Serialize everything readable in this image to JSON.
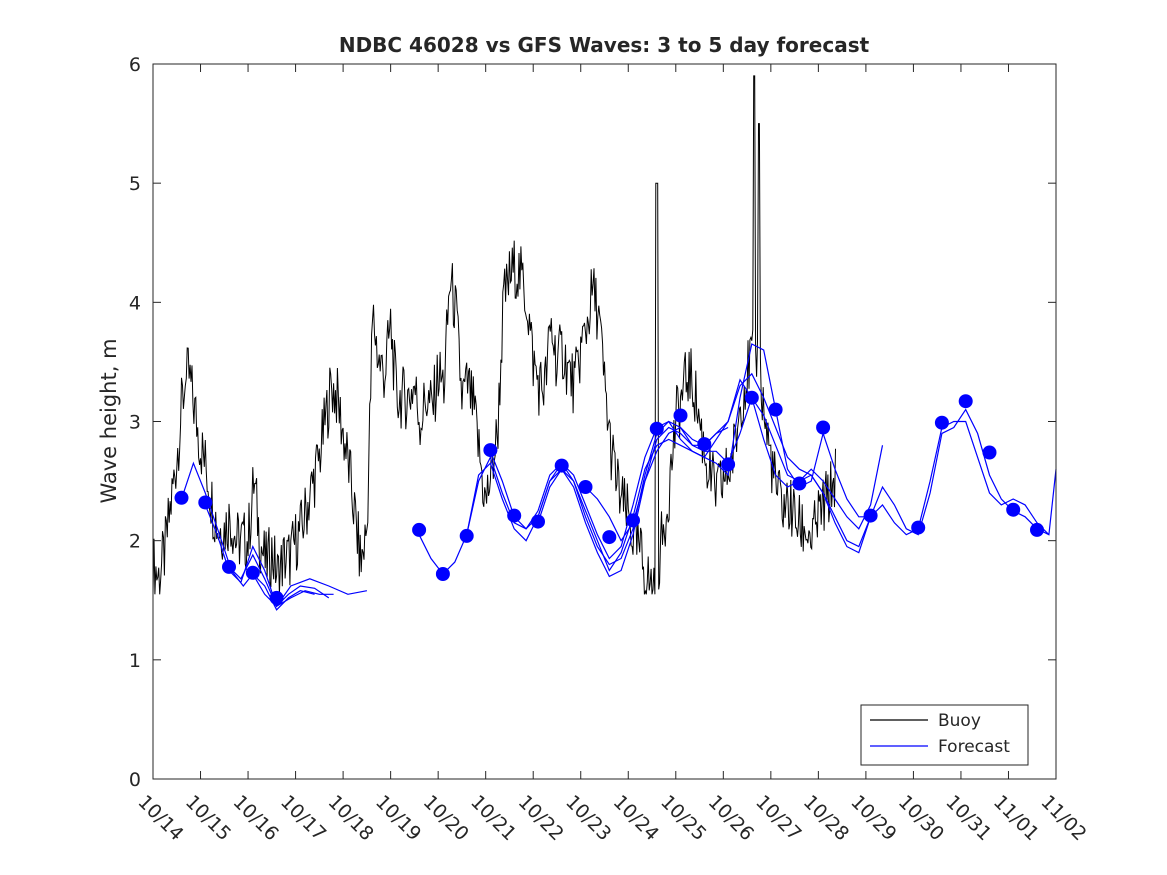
{
  "chart_data": {
    "type": "line",
    "title": "NDBC 46028 vs GFS Waves: 3 to 5 day forecast",
    "xlabel": "",
    "ylabel": "Wave height, m",
    "xlim": [
      0,
      19
    ],
    "ylim": [
      0,
      6
    ],
    "x_ticks": [
      {
        "label": "10/14",
        "value": 0
      },
      {
        "label": "10/15",
        "value": 1
      },
      {
        "label": "10/16",
        "value": 2
      },
      {
        "label": "10/17",
        "value": 3
      },
      {
        "label": "10/18",
        "value": 4
      },
      {
        "label": "10/19",
        "value": 5
      },
      {
        "label": "10/20",
        "value": 6
      },
      {
        "label": "10/21",
        "value": 7
      },
      {
        "label": "10/22",
        "value": 8
      },
      {
        "label": "10/23",
        "value": 9
      },
      {
        "label": "10/24",
        "value": 10
      },
      {
        "label": "10/25",
        "value": 11
      },
      {
        "label": "10/26",
        "value": 12
      },
      {
        "label": "10/27",
        "value": 13
      },
      {
        "label": "10/28",
        "value": 14
      },
      {
        "label": "10/29",
        "value": 15
      },
      {
        "label": "10/30",
        "value": 16
      },
      {
        "label": "10/31",
        "value": 17
      },
      {
        "label": "11/01",
        "value": 18
      },
      {
        "label": "11/02",
        "value": 19
      }
    ],
    "y_ticks": [
      0,
      1,
      2,
      3,
      4,
      5,
      6
    ],
    "legend": {
      "position": "bottom-right",
      "entries": [
        "Buoy",
        "Forecast"
      ]
    },
    "colors": {
      "buoy": "#000000",
      "forecast": "#0000ff",
      "axis": "#262626"
    },
    "buoy": {
      "name": "Buoy",
      "x_start": 0,
      "x_step": 0.125,
      "values": [
        1.8,
        1.7,
        1.9,
        2.3,
        2.7,
        3.2,
        3.4,
        3.1,
        2.8,
        2.6,
        2.3,
        2.1,
        2.1,
        2.2,
        2.0,
        2.0,
        2.0,
        2.5,
        2.0,
        1.8,
        1.9,
        1.7,
        1.85,
        1.85,
        2.0,
        2.1,
        2.3,
        2.5,
        2.7,
        3.0,
        3.3,
        3.2,
        2.9,
        2.6,
        2.2,
        1.8,
        2.1,
        3.9,
        3.5,
        3.4,
        3.8,
        3.2,
        3.2,
        3.2,
        3.3,
        3.0,
        3.2,
        3.1,
        3.4,
        3.3,
        4.2,
        3.9,
        3.2,
        3.3,
        3.1,
        2.7,
        2.3,
        2.6,
        2.9,
        4.0,
        4.2,
        4.3,
        4.2,
        4.0,
        3.5,
        3.3,
        3.3,
        3.8,
        3.5,
        3.6,
        3.4,
        3.3,
        3.6,
        3.8,
        4.1,
        3.9,
        3.3,
        2.8,
        2.5,
        2.3,
        2.2,
        2.0,
        1.9,
        1.7,
        1.6,
        1.8,
        2.1,
        2.5,
        3.0,
        3.2,
        3.4,
        3.3,
        3.0,
        2.7,
        2.5,
        2.4,
        2.5,
        2.6,
        2.8,
        3.2,
        3.4,
        3.6,
        3.5,
        3.0,
        2.7,
        2.4,
        2.3,
        2.3,
        2.2,
        2.1,
        2.1,
        2.0,
        2.2,
        2.3,
        2.4,
        2.6
      ],
      "events": [
        {
          "x": 0.7,
          "value": 3.3,
          "note": "approx"
        },
        {
          "x": 10.6,
          "value": 5.0
        },
        {
          "x": 12.65,
          "value": 5.9
        },
        {
          "x": 12.75,
          "value": 5.5
        }
      ]
    },
    "forecast": {
      "name": "Forecast",
      "runs": [
        {
          "x": [
            0.6,
            0.85,
            1.1,
            1.4,
            1.65,
            1.9,
            2.1,
            2.35,
            2.6,
            2.9,
            3.2,
            3.5,
            3.8
          ],
          "values": [
            2.35,
            2.65,
            2.4,
            2.05,
            1.75,
            1.62,
            1.72,
            1.55,
            1.45,
            1.52,
            1.58,
            1.55,
            1.55
          ]
        },
        {
          "x": [
            1.1,
            1.35,
            1.6,
            1.85,
            2.1,
            2.35,
            2.6,
            2.9,
            3.3,
            3.7,
            4.1,
            4.5
          ],
          "values": [
            2.3,
            2.05,
            1.75,
            1.65,
            1.95,
            1.75,
            1.45,
            1.62,
            1.68,
            1.62,
            1.55,
            1.58
          ]
        },
        {
          "x": [
            1.6,
            1.85,
            2.1,
            2.35,
            2.6,
            2.85,
            3.1,
            3.4,
            3.7
          ],
          "values": [
            1.78,
            1.68,
            1.88,
            1.68,
            1.45,
            1.55,
            1.62,
            1.6,
            1.52
          ]
        },
        {
          "x": [
            2.1,
            2.35,
            2.6,
            2.85,
            3.1,
            3.4
          ],
          "values": [
            1.72,
            1.62,
            1.42,
            1.52,
            1.58,
            1.55
          ]
        },
        {
          "x": [
            5.6,
            5.85,
            6.1,
            6.35,
            6.6,
            6.85,
            7.1,
            7.35,
            7.6,
            7.85,
            8.1,
            8.35,
            8.6,
            8.85,
            9.1,
            9.35,
            9.6,
            9.85,
            10.1,
            10.35,
            10.6,
            10.85,
            11.1,
            11.35,
            11.6,
            11.85,
            12.1,
            12.35,
            12.6,
            12.85,
            13.1,
            13.35,
            13.6,
            13.85,
            14.1,
            14.35,
            14.6,
            14.85,
            15.1,
            15.35,
            15.6,
            15.85,
            16.1,
            16.35,
            16.6,
            16.85,
            17.1,
            17.35,
            17.6,
            17.85,
            18.1,
            18.35,
            18.6,
            18.85,
            19.0
          ],
          "values": [
            2.05,
            1.85,
            1.72,
            1.82,
            2.05,
            2.5,
            2.7,
            2.4,
            2.15,
            2.1,
            2.25,
            2.55,
            2.65,
            2.5,
            2.2,
            1.95,
            1.8,
            1.85,
            2.1,
            2.55,
            2.9,
            3.0,
            2.95,
            2.8,
            2.75,
            2.75,
            2.65,
            2.9,
            3.2,
            3.05,
            2.8,
            2.55,
            2.5,
            2.55,
            2.4,
            2.2,
            2.0,
            1.95,
            2.2,
            2.45,
            2.3,
            2.1,
            2.05,
            2.4,
            2.9,
            2.95,
            3.1,
            2.9,
            2.55,
            2.35,
            2.25,
            2.2,
            2.1,
            2.05,
            2.6
          ]
        },
        {
          "x": [
            6.6,
            6.85,
            7.1,
            7.35,
            7.6,
            7.85,
            8.1,
            8.35,
            8.6,
            8.85,
            9.1,
            9.35,
            9.6,
            9.85,
            10.1,
            10.35,
            10.6,
            10.85,
            11.1,
            11.35,
            11.6,
            11.85,
            12.1,
            12.35,
            12.6,
            12.85,
            13.1,
            13.35,
            13.6,
            13.85,
            14.1,
            14.35,
            14.6,
            14.85,
            15.1
          ],
          "values": [
            2.05,
            2.55,
            2.65,
            2.35,
            2.1,
            2.0,
            2.2,
            2.5,
            2.6,
            2.45,
            2.15,
            1.9,
            1.7,
            1.75,
            2.05,
            2.5,
            2.85,
            2.95,
            2.9,
            2.8,
            2.8,
            2.9,
            3.0,
            3.3,
            3.4,
            3.2,
            2.95,
            2.7,
            2.6,
            2.55,
            2.4,
            2.15,
            1.95,
            1.9,
            2.2
          ]
        },
        {
          "x": [
            7.1,
            7.35,
            7.6,
            7.85,
            8.1,
            8.35,
            8.6,
            8.85,
            9.1,
            9.35,
            9.6,
            9.85,
            10.1,
            10.35,
            10.6,
            10.85,
            11.1,
            11.35,
            11.6,
            11.85,
            12.1,
            12.35,
            12.6,
            12.85,
            13.1,
            13.35,
            13.6,
            13.85,
            14.1,
            14.35,
            14.6,
            14.85,
            15.1,
            15.35,
            15.6,
            15.85,
            16.1,
            16.35,
            16.6,
            16.85,
            17.1,
            17.35,
            17.6,
            17.85,
            18.1,
            18.35,
            18.6,
            18.85
          ],
          "values": [
            2.75,
            2.5,
            2.2,
            2.1,
            2.2,
            2.5,
            2.65,
            2.55,
            2.3,
            2.05,
            1.85,
            1.95,
            2.3,
            2.7,
            2.95,
            3.0,
            2.85,
            2.75,
            2.7,
            2.65,
            2.55,
            3.2,
            3.65,
            3.6,
            3.1,
            2.6,
            2.45,
            2.5,
            2.9,
            2.6,
            2.35,
            2.2,
            2.2,
            2.3,
            2.15,
            2.05,
            2.1,
            2.5,
            2.95,
            3.0,
            3.0,
            2.7,
            2.4,
            2.3,
            2.35,
            2.3,
            2.15,
            2.05
          ]
        },
        {
          "x": [
            8.1,
            8.35,
            8.6,
            8.85,
            9.1,
            9.35,
            9.6,
            9.85,
            10.1,
            10.35,
            10.6,
            10.85,
            11.1,
            11.35,
            11.6,
            11.85,
            12.1,
            12.35,
            12.6,
            12.85,
            13.1,
            13.35,
            13.6,
            13.85,
            14.1,
            14.35,
            14.6,
            14.85,
            15.1,
            15.35
          ],
          "values": [
            2.15,
            2.45,
            2.6,
            2.5,
            2.25,
            2.0,
            1.75,
            1.9,
            2.2,
            2.6,
            2.8,
            2.85,
            2.8,
            2.75,
            2.7,
            2.85,
            3.0,
            3.35,
            3.2,
            2.85,
            2.55,
            2.45,
            2.5,
            2.6,
            2.5,
            2.35,
            2.2,
            2.1,
            2.3,
            2.8
          ]
        },
        {
          "x": [
            9.1,
            9.35,
            9.6,
            9.85,
            10.1,
            10.35,
            10.6,
            10.85,
            11.1,
            11.35,
            11.6,
            11.85,
            12.1
          ],
          "values": [
            2.45,
            2.35,
            2.2,
            2.0,
            2.15,
            2.5,
            2.75,
            2.9,
            2.95,
            2.85,
            2.8,
            2.9,
            2.95
          ]
        }
      ],
      "analysis_points": {
        "x": [
          0.6,
          1.1,
          1.6,
          2.1,
          2.6,
          5.6,
          6.1,
          6.6,
          7.1,
          7.6,
          8.1,
          8.6,
          9.1,
          9.6,
          10.1,
          10.6,
          11.1,
          11.6,
          12.1,
          12.6,
          13.1,
          13.6,
          14.1,
          15.1,
          16.1,
          16.6,
          17.1,
          17.6,
          18.1,
          18.6
        ],
        "values": [
          2.36,
          2.32,
          1.78,
          1.73,
          1.52,
          2.09,
          1.72,
          2.04,
          2.76,
          2.21,
          2.16,
          2.63,
          2.45,
          2.03,
          2.17,
          2.94,
          3.05,
          2.81,
          2.64,
          3.2,
          3.1,
          2.48,
          2.95,
          2.21,
          2.11,
          2.99,
          3.17,
          2.74,
          2.26,
          2.09
        ]
      }
    }
  }
}
